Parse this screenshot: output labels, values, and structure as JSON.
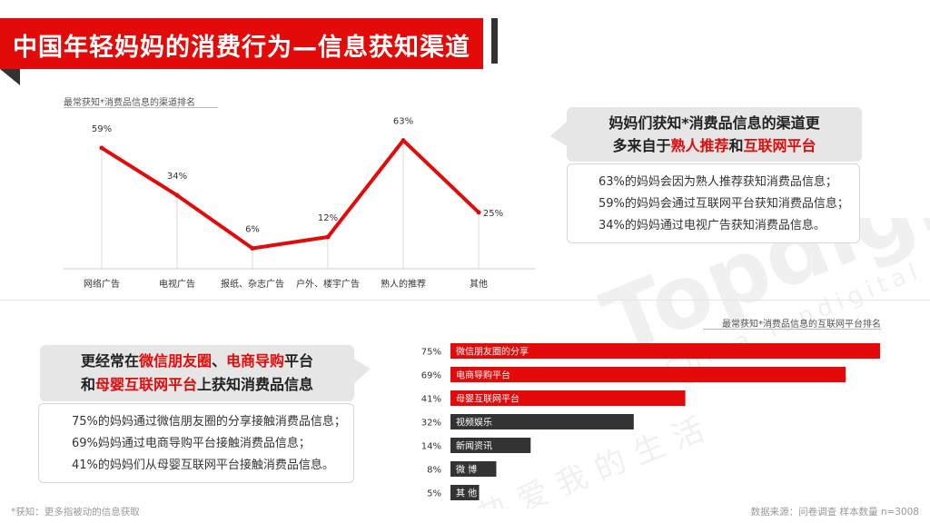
{
  "header": {
    "title": "中国年轻妈妈的消费行为—信息获知渠道"
  },
  "line_chart": {
    "caption": "最常获知*消费品信息的渠道排名"
  },
  "bar_chart": {
    "caption": "最常获知*消费品信息的互联网平台排名"
  },
  "chart_data": [
    {
      "type": "line",
      "categories": [
        "网络广告",
        "电视广告",
        "报纸、杂志广告",
        "户外、楼宇广告",
        "熟人的推荐",
        "其他"
      ],
      "values": [
        59,
        34,
        6,
        12,
        63,
        25
      ],
      "value_labels": [
        "59%",
        "34%",
        "6%",
        "12%",
        "63%",
        "25%"
      ],
      "title": "最常获知*消费品信息的渠道排名",
      "color": "#e30a0a",
      "ylim": [
        0,
        70
      ]
    },
    {
      "type": "bar",
      "orientation": "horizontal",
      "categories": [
        "微信朋友圈的分享",
        "电商导购平台",
        "母婴互联网平台",
        "视频娱乐",
        "新闻资讯",
        "微 博",
        "其 他"
      ],
      "values": [
        75,
        69,
        41,
        32,
        14,
        8,
        5
      ],
      "value_labels": [
        "75%",
        "69%",
        "41%",
        "32%",
        "14%",
        "8%",
        "5%"
      ],
      "title": "最常获知*消费品信息的互联网平台排名",
      "colors": [
        "#e30a0a",
        "#e30a0a",
        "#e30a0a",
        "#333333",
        "#333333",
        "#333333",
        "#333333"
      ],
      "xlim": [
        0,
        75
      ]
    }
  ],
  "callout_top": {
    "head_line1": "妈妈们获知*消费品信息的渠道更",
    "head_line2_prefix": "多来自于",
    "head_line2_hl1": "熟人推荐",
    "head_line2_mid": "和",
    "head_line2_hl2": "互联网平台",
    "body": [
      "63%的妈妈会因为熟人推荐获知消费品信息；",
      "59%的妈妈会通过互联网平台获知消费品信息；",
      "34%的妈妈通过电视广告获知消费品信息。"
    ]
  },
  "callout_bottom": {
    "head_line1_prefix": "更经常在",
    "head_line1_hl1": "微信朋友圈",
    "head_line1_mid": "、",
    "head_line1_hl2": "电商导购",
    "head_line1_suffix": "平台",
    "head_line2_prefix": "和",
    "head_line2_hl": "母婴互联网平台",
    "head_line2_suffix": "上获知消费品信息",
    "body": [
      "75%的妈妈通过微信朋友圈的分享接触消费品信息；",
      "69%妈妈通过电商导购平台接触消费品信息；",
      "41%的妈妈们从母婴互联网平台接触消费品信息。"
    ]
  },
  "footer": {
    "note": "*获知：更多指被动的信息获取",
    "source": "数据来源：问卷调查  样本数量 n=3008"
  },
  "watermark": {
    "brand": "Topdigital",
    "subtitle": "China Topdigital World",
    "cn": "热爱我的生活"
  },
  "colors": {
    "accent": "#e30a0a",
    "dark": "#333333"
  }
}
